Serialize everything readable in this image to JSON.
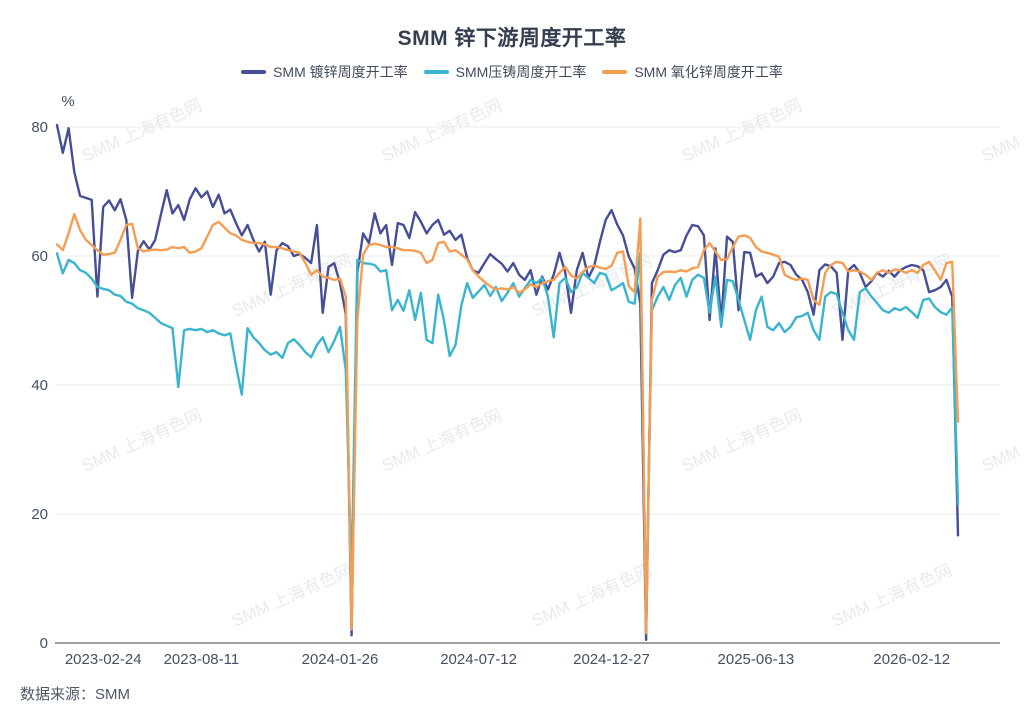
{
  "footer": {
    "source_label": "数据来源：SMM"
  },
  "watermark": {
    "text": "SMM 上海有色网"
  },
  "colors": {
    "background": "#ffffff",
    "grid": "#e9ebee",
    "axis_line": "#5f6775",
    "title_text": "#353e50",
    "tick_text": "#465062",
    "watermark": "#e9eaee"
  },
  "chart_data": {
    "type": "line",
    "title": "SMM 锌下游周度开工率",
    "ylabel": "%",
    "ylim": [
      0,
      80
    ],
    "yticks": [
      0,
      20,
      40,
      60,
      80
    ],
    "grid": true,
    "legend_position": "top",
    "x_labels": [
      "2023-02-24",
      "2023-08-11",
      "2024-01-26",
      "2024-07-12",
      "2024-12-27",
      "2025-06-13",
      "2026-02-12"
    ],
    "x_label_indices": [
      8,
      25,
      49,
      73,
      96,
      121,
      148
    ],
    "series": [
      {
        "name": "SMM 镀锌周度开工率",
        "color": "#454e96",
        "values": [
          80.3,
          76.0,
          79.8,
          73.0,
          69.3,
          69.0,
          68.7,
          53.7,
          67.6,
          68.6,
          67.1,
          68.8,
          65.6,
          53.5,
          60.8,
          62.3,
          61.0,
          62.5,
          66.5,
          70.2,
          66.6,
          67.9,
          65.6,
          68.8,
          70.5,
          69.1,
          70.0,
          67.6,
          69.5,
          66.6,
          67.2,
          65.1,
          63.2,
          64.8,
          62.5,
          60.7,
          62.2,
          54.0,
          60.9,
          62.0,
          61.5,
          60.0,
          60.3,
          59.7,
          58.9,
          64.8,
          51.2,
          58.3,
          58.9,
          55.8,
          51.0,
          1.2,
          57.4,
          63.5,
          62.0,
          66.6,
          63.5,
          64.8,
          58.6,
          65.1,
          64.8,
          62.8,
          66.8,
          65.3,
          63.5,
          64.8,
          65.6,
          63.3,
          63.9,
          62.5,
          63.3,
          59.7,
          57.8,
          57.4,
          58.9,
          60.3,
          59.5,
          58.8,
          57.6,
          58.9,
          57.1,
          56.3,
          57.8,
          54.0,
          56.8,
          54.8,
          57.1,
          60.5,
          57.4,
          51.2,
          57.8,
          60.5,
          56.6,
          58.4,
          62.2,
          65.6,
          67.1,
          64.9,
          63.2,
          59.9,
          58.1,
          52.7,
          0.5,
          55.8,
          57.8,
          60.2,
          60.9,
          60.6,
          60.9,
          63.2,
          64.8,
          64.6,
          63.2,
          50.1,
          61.2,
          49.8,
          63.0,
          62.2,
          51.6,
          60.6,
          60.5,
          56.8,
          57.3,
          55.8,
          56.8,
          58.9,
          59.1,
          58.6,
          57.1,
          56.3,
          54.4,
          50.9,
          57.8,
          58.7,
          58.4,
          57.4,
          47.0,
          57.8,
          58.6,
          57.4,
          55.2,
          56.1,
          57.4,
          56.8,
          57.7,
          56.8,
          57.8,
          58.3,
          58.6,
          58.4,
          57.8,
          54.4,
          54.7,
          55.2,
          56.3,
          53.7,
          16.7
        ]
      },
      {
        "name": "SMM压铸周度开工率",
        "color": "#3ab5cf",
        "values": [
          60.4,
          57.3,
          59.4,
          58.9,
          57.8,
          57.4,
          56.5,
          55.2,
          54.9,
          54.7,
          54.0,
          53.8,
          52.9,
          52.6,
          51.9,
          51.6,
          51.2,
          50.4,
          49.6,
          49.2,
          48.8,
          39.7,
          48.5,
          48.7,
          48.5,
          48.7,
          48.2,
          48.5,
          48.0,
          47.7,
          48.0,
          43.0,
          38.5,
          48.8,
          47.4,
          46.5,
          45.4,
          44.7,
          45.1,
          44.2,
          46.5,
          47.1,
          46.2,
          45.1,
          44.3,
          46.2,
          47.4,
          45.1,
          46.8,
          49.0,
          42.3,
          10.0,
          59.4,
          58.9,
          58.8,
          58.6,
          57.6,
          57.8,
          51.6,
          53.2,
          51.5,
          54.7,
          50.1,
          54.3,
          47.0,
          46.5,
          54.0,
          50.0,
          44.5,
          46.2,
          52.3,
          55.8,
          53.5,
          54.5,
          55.5,
          53.8,
          55.2,
          53.0,
          54.3,
          55.8,
          53.7,
          55.0,
          56.3,
          55.8,
          56.6,
          53.7,
          47.4,
          55.8,
          56.6,
          54.4,
          55.1,
          57.4,
          56.6,
          55.8,
          57.4,
          57.1,
          54.7,
          55.2,
          55.8,
          52.9,
          52.6,
          60.5,
          4.0,
          51.6,
          53.7,
          55.2,
          53.2,
          55.5,
          56.6,
          53.7,
          56.3,
          57.1,
          56.6,
          51.2,
          56.8,
          49.0,
          56.3,
          56.1,
          53.2,
          50.1,
          47.0,
          51.6,
          53.7,
          49.0,
          48.5,
          49.6,
          48.2,
          49.0,
          50.5,
          50.7,
          51.2,
          48.5,
          47.0,
          53.7,
          54.4,
          54.1,
          51.2,
          48.5,
          47.0,
          54.4,
          55.0,
          53.7,
          52.7,
          51.6,
          51.2,
          51.9,
          51.6,
          52.1,
          51.3,
          50.4,
          53.2,
          53.4,
          52.1,
          51.3,
          50.9,
          52.0,
          21.5
        ]
      },
      {
        "name": "SMM 氧化锌周度开工率",
        "color": "#f59d52",
        "values": [
          61.8,
          60.9,
          63.5,
          66.5,
          64.0,
          62.5,
          61.7,
          60.9,
          60.2,
          60.3,
          60.5,
          62.5,
          64.8,
          65.0,
          61.2,
          60.7,
          60.9,
          61.0,
          60.9,
          61.0,
          61.4,
          61.2,
          61.4,
          60.5,
          60.7,
          61.2,
          63.0,
          64.8,
          65.3,
          64.4,
          63.5,
          63.2,
          62.5,
          62.2,
          62.0,
          62.0,
          61.8,
          61.4,
          61.4,
          61.2,
          60.9,
          60.7,
          60.5,
          58.9,
          57.1,
          57.8,
          56.8,
          56.6,
          56.3,
          56.5,
          53.7,
          2.1,
          50.0,
          60.2,
          61.7,
          61.9,
          61.7,
          61.4,
          61.4,
          61.2,
          60.9,
          60.9,
          60.8,
          60.5,
          58.9,
          59.4,
          62.0,
          62.2,
          60.7,
          60.9,
          60.2,
          59.5,
          57.8,
          56.8,
          56.0,
          55.3,
          54.8,
          55.0,
          54.8,
          55.2,
          54.3,
          54.8,
          55.6,
          55.2,
          55.8,
          56.1,
          56.3,
          57.4,
          58.3,
          57.0,
          56.5,
          57.5,
          58.3,
          58.5,
          58.2,
          58.0,
          58.5,
          60.5,
          60.7,
          55.3,
          54.4,
          65.8,
          1.5,
          53.2,
          56.8,
          57.5,
          57.6,
          57.5,
          57.8,
          57.6,
          58.1,
          58.3,
          60.9,
          62.0,
          60.7,
          59.4,
          59.5,
          61.4,
          63.0,
          63.2,
          62.8,
          61.4,
          60.7,
          60.5,
          60.2,
          59.9,
          57.1,
          56.6,
          56.3,
          56.5,
          56.3,
          53.2,
          52.4,
          57.4,
          58.6,
          59.1,
          58.9,
          57.6,
          57.8,
          57.6,
          57.1,
          56.3,
          57.4,
          57.8,
          57.4,
          57.9,
          57.8,
          57.4,
          57.8,
          57.4,
          58.6,
          59.1,
          57.8,
          56.3,
          58.9,
          59.1,
          34.3
        ]
      }
    ]
  }
}
